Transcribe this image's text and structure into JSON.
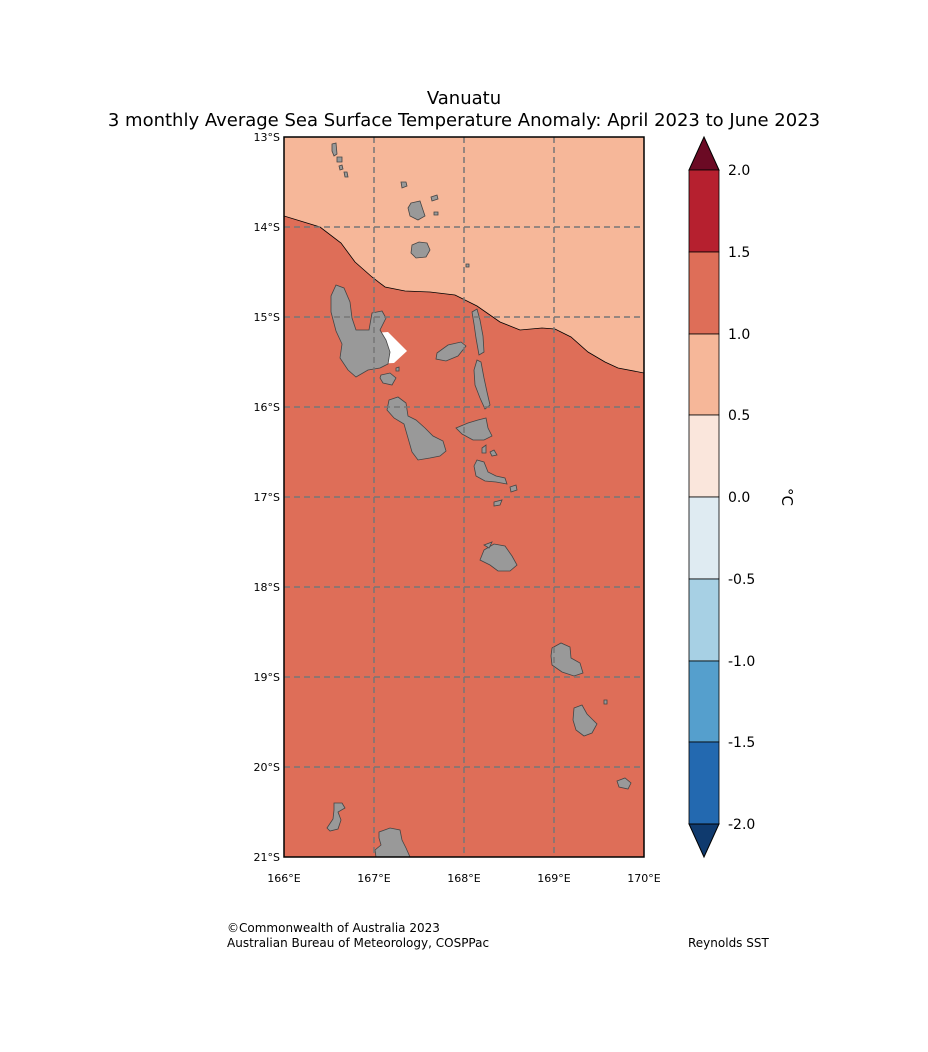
{
  "title": {
    "region": "Vanuatu",
    "subtitle": "3 monthly Average Sea Surface Temperature Anomaly: April 2023 to June 2023"
  },
  "map": {
    "lat_labels": [
      "13°S",
      "14°S",
      "15°S",
      "16°S",
      "17°S",
      "18°S",
      "19°S",
      "20°S",
      "21°S"
    ],
    "lon_labels": [
      "166°E",
      "167°E",
      "168°E",
      "169°E",
      "170°E"
    ],
    "lat_range": [
      -21,
      -13
    ],
    "lon_range": [
      166,
      170
    ],
    "anomaly_zones": [
      {
        "name": "north",
        "range": "0.5 to 1.0",
        "color": "#f6b799"
      },
      {
        "name": "south",
        "range": "1.0 to 1.5",
        "color": "#de6e58"
      }
    ],
    "land_color": "#999999"
  },
  "colorbar": {
    "unit": "°C",
    "ticks": [
      "2.0",
      "1.5",
      "1.0",
      "0.5",
      "0.0",
      "-0.5",
      "-1.0",
      "-1.5",
      "-2.0"
    ],
    "colors": [
      "#b6202f",
      "#de6e58",
      "#f6b799",
      "#fae6dc",
      "#dfebf2",
      "#a7d0e4",
      "#559fcd",
      "#2369b0"
    ],
    "over_color": "#6b0a24",
    "under_color": "#0f3a6e"
  },
  "footer": {
    "copyright": "©Commonwealth of Australia 2023",
    "agency": "Australian Bureau of Meteorology, COSPPac",
    "source": "Reynolds SST"
  }
}
